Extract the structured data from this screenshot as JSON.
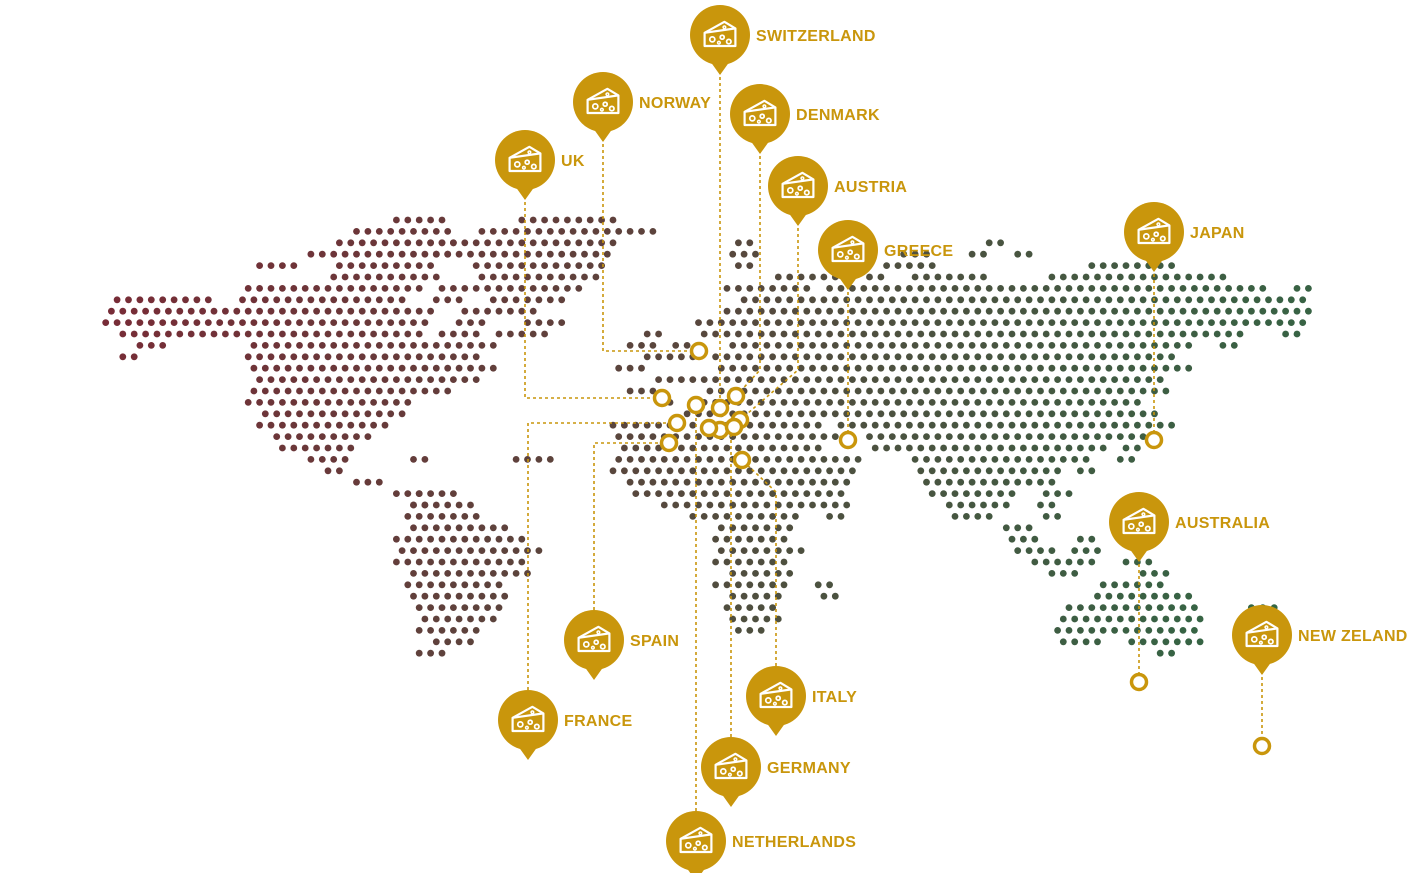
{
  "colors": {
    "accent": "#c9960c",
    "map_west": "#7a2a36",
    "map_east": "#2e6b46"
  },
  "marker_icon": "cheese-icon",
  "countries": [
    {
      "id": "switzerland",
      "label": "SWITZERLAND"
    },
    {
      "id": "norway",
      "label": "NORWAY"
    },
    {
      "id": "denmark",
      "label": "DENMARK"
    },
    {
      "id": "uk",
      "label": "UK"
    },
    {
      "id": "austria",
      "label": "AUSTRIA"
    },
    {
      "id": "greece",
      "label": "GREECE"
    },
    {
      "id": "japan",
      "label": "JAPAN"
    },
    {
      "id": "australia",
      "label": "AUSTRALIA"
    },
    {
      "id": "new-zeland",
      "label": "NEW ZELAND"
    },
    {
      "id": "spain",
      "label": "SPAIN"
    },
    {
      "id": "italy",
      "label": "ITALY"
    },
    {
      "id": "france",
      "label": "FRANCE"
    },
    {
      "id": "germany",
      "label": "GERMANY"
    },
    {
      "id": "netherlands",
      "label": "NETHERLANDS"
    }
  ]
}
